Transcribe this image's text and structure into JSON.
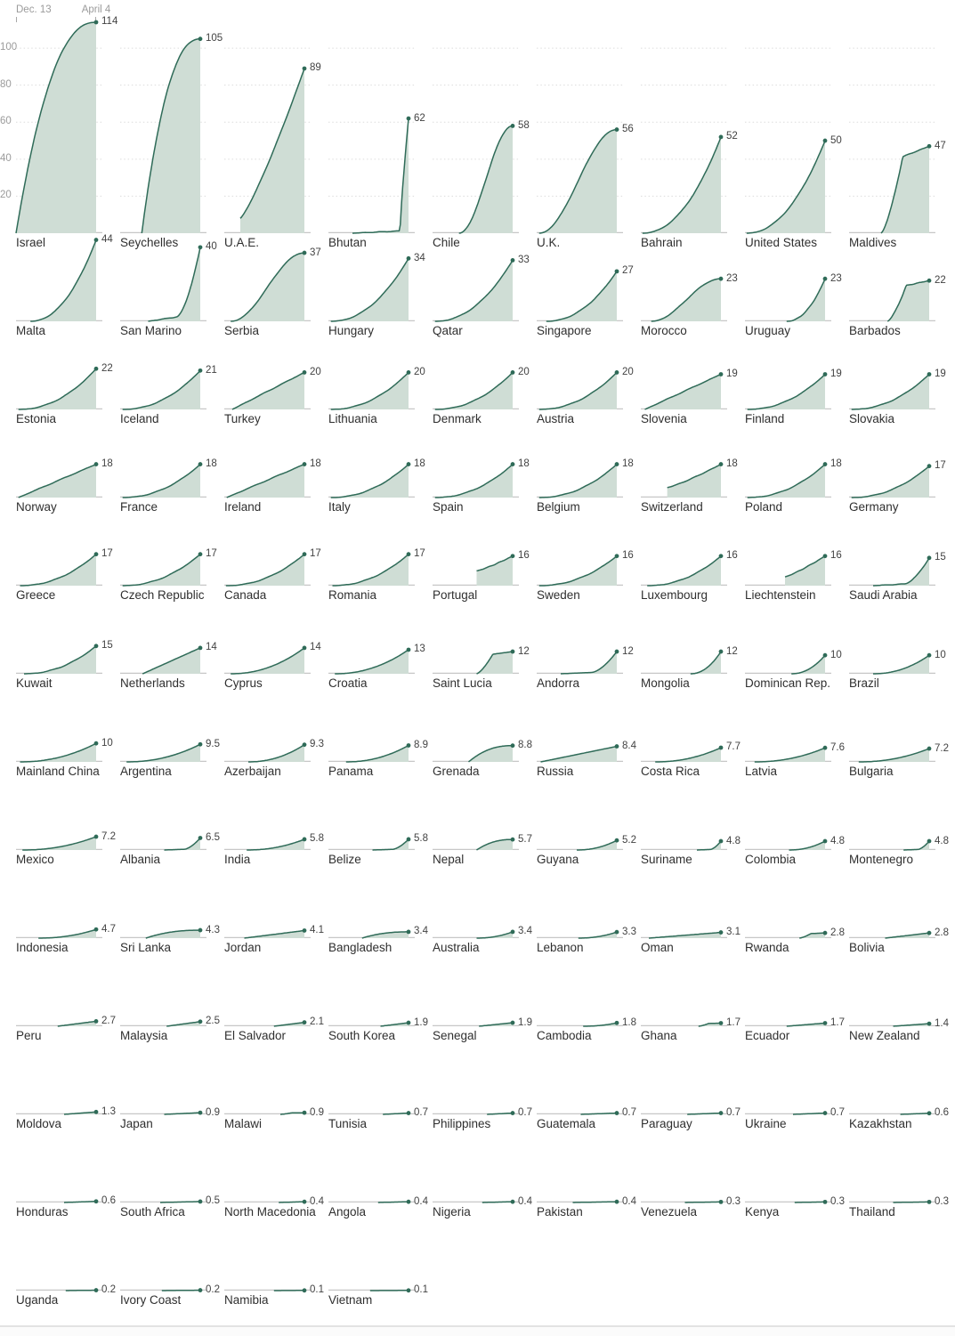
{
  "axis": {
    "x_start_label": "Dec. 13",
    "x_end_label": "April 4",
    "y_ticks": [
      20,
      40,
      60,
      80,
      100
    ]
  },
  "colors": {
    "line": "#2f6b58",
    "dot": "#2f6b58",
    "fill": "#cfddd5",
    "baseline": "#c7c7c7",
    "grid": "#dcdcdc",
    "value_text": "#424242",
    "country_text": "#2f2f2f",
    "axis_text": "#9b9b9b"
  },
  "chart_data": {
    "type": "area",
    "x_axis": {
      "start_label": "Dec. 13",
      "end_label": "April 4"
    },
    "y_ticks": [
      20,
      40,
      60,
      80,
      100
    ],
    "ylim": [
      0,
      118
    ],
    "grid_row1_only": true,
    "series": [
      {
        "name": "Israel",
        "label": "114",
        "value": 114,
        "shape": "d",
        "start": 0
      },
      {
        "name": "Seychelles",
        "label": "105",
        "value": 105,
        "shape": "d",
        "start": 0.27
      },
      {
        "name": "U.A.E.",
        "label": "89",
        "value": 89,
        "shape": "m",
        "start": 0.2,
        "base": 0.09
      },
      {
        "name": "Bhutan",
        "label": "62",
        "value": 62,
        "shape": "v",
        "start": 0.3
      },
      {
        "name": "Chile",
        "label": "58",
        "value": 58,
        "shape": "s",
        "start": 0.33
      },
      {
        "name": "U.K.",
        "label": "56",
        "value": 56,
        "shape": "s",
        "start": 0.03
      },
      {
        "name": "Bahrain",
        "label": "52",
        "value": 52,
        "shape": "c",
        "start": 0.02
      },
      {
        "name": "United States",
        "label": "50",
        "value": 50,
        "shape": "c",
        "start": 0.02
      },
      {
        "name": "Maldives",
        "label": "47",
        "value": 47,
        "shape": "j",
        "start": 0.4
      },
      {
        "name": "Malta",
        "label": "44",
        "value": 44,
        "shape": "c",
        "start": 0.18
      },
      {
        "name": "San Marino",
        "label": "40",
        "value": 40,
        "shape": "sp",
        "start": 0.35
      },
      {
        "name": "Serbia",
        "label": "37",
        "value": 37,
        "shape": "s",
        "start": 0.08
      },
      {
        "name": "Hungary",
        "label": "34",
        "value": 34,
        "shape": "c",
        "start": 0.03
      },
      {
        "name": "Qatar",
        "label": "33",
        "value": 33,
        "shape": "c",
        "start": 0.03
      },
      {
        "name": "Singapore",
        "label": "27",
        "value": 27,
        "shape": "c",
        "start": 0.12
      },
      {
        "name": "Morocco",
        "label": "23",
        "value": 23,
        "shape": "s",
        "start": 0.13
      },
      {
        "name": "Uruguay",
        "label": "23",
        "value": 23,
        "shape": "c",
        "start": 0.52
      },
      {
        "name": "Barbados",
        "label": "22",
        "value": 22,
        "shape": "j",
        "start": 0.48
      },
      {
        "name": "Estonia",
        "label": "22",
        "value": 22,
        "shape": "c",
        "start": 0.03
      },
      {
        "name": "Iceland",
        "label": "21",
        "value": 21,
        "shape": "c",
        "start": 0.03
      },
      {
        "name": "Turkey",
        "label": "20",
        "value": 20,
        "shape": "l",
        "start": 0.1
      },
      {
        "name": "Lithuania",
        "label": "20",
        "value": 20,
        "shape": "c",
        "start": 0.03
      },
      {
        "name": "Denmark",
        "label": "20",
        "value": 20,
        "shape": "c",
        "start": 0.03
      },
      {
        "name": "Austria",
        "label": "20",
        "value": 20,
        "shape": "c",
        "start": 0.03
      },
      {
        "name": "Slovenia",
        "label": "19",
        "value": 19,
        "shape": "l",
        "start": 0.05
      },
      {
        "name": "Finland",
        "label": "19",
        "value": 19,
        "shape": "c",
        "start": 0.03
      },
      {
        "name": "Slovakia",
        "label": "19",
        "value": 19,
        "shape": "c",
        "start": 0.03
      },
      {
        "name": "Norway",
        "label": "18",
        "value": 18,
        "shape": "l",
        "start": 0.03
      },
      {
        "name": "France",
        "label": "18",
        "value": 18,
        "shape": "c",
        "start": 0.03
      },
      {
        "name": "Ireland",
        "label": "18",
        "value": 18,
        "shape": "l",
        "start": 0.03
      },
      {
        "name": "Italy",
        "label": "18",
        "value": 18,
        "shape": "c",
        "start": 0.03
      },
      {
        "name": "Spain",
        "label": "18",
        "value": 18,
        "shape": "c",
        "start": 0.03
      },
      {
        "name": "Belgium",
        "label": "18",
        "value": 18,
        "shape": "c",
        "start": 0.03
      },
      {
        "name": "Switzerland",
        "label": "18",
        "value": 18,
        "shape": "m",
        "start": 0.33,
        "base": 0.3
      },
      {
        "name": "Poland",
        "label": "18",
        "value": 18,
        "shape": "c",
        "start": 0.03
      },
      {
        "name": "Germany",
        "label": "17",
        "value": 17,
        "shape": "c",
        "start": 0.03
      },
      {
        "name": "Greece",
        "label": "17",
        "value": 17,
        "shape": "c",
        "start": 0.05
      },
      {
        "name": "Czech Republic",
        "label": "17",
        "value": 17,
        "shape": "c",
        "start": 0.03
      },
      {
        "name": "Canada",
        "label": "17",
        "value": 17,
        "shape": "c",
        "start": 0.02
      },
      {
        "name": "Romania",
        "label": "17",
        "value": 17,
        "shape": "c",
        "start": 0.05
      },
      {
        "name": "Portugal",
        "label": "16",
        "value": 16,
        "shape": "m",
        "start": 0.55,
        "base": 0.5
      },
      {
        "name": "Sweden",
        "label": "16",
        "value": 16,
        "shape": "c",
        "start": 0.03
      },
      {
        "name": "Luxembourg",
        "label": "16",
        "value": 16,
        "shape": "c",
        "start": 0.08
      },
      {
        "name": "Liechtenstein",
        "label": "16",
        "value": 16,
        "shape": "m",
        "start": 0.5,
        "base": 0.3
      },
      {
        "name": "Saudi Arabia",
        "label": "15",
        "value": 15,
        "shape": "sp",
        "start": 0.3
      },
      {
        "name": "Kuwait",
        "label": "15",
        "value": 15,
        "shape": "c",
        "start": 0.1
      },
      {
        "name": "Netherlands",
        "label": "14",
        "value": 14,
        "shape": "l",
        "start": 0.28
      },
      {
        "name": "Cyprus",
        "label": "14",
        "value": 14,
        "shape": "c",
        "start": 0.08
      },
      {
        "name": "Croatia",
        "label": "13",
        "value": 13,
        "shape": "c",
        "start": 0.08
      },
      {
        "name": "Saint Lucia",
        "label": "12",
        "value": 12,
        "shape": "j",
        "start": 0.55
      },
      {
        "name": "Andorra",
        "label": "12",
        "value": 12,
        "shape": "sp",
        "start": 0.3
      },
      {
        "name": "Mongolia",
        "label": "12",
        "value": 12,
        "shape": "c",
        "start": 0.62
      },
      {
        "name": "Dominican Rep.",
        "label": "10",
        "value": 10,
        "shape": "c",
        "start": 0.58
      },
      {
        "name": "Brazil",
        "label": "10",
        "value": 10,
        "shape": "c",
        "start": 0.3
      },
      {
        "name": "Mainland China",
        "label": "10",
        "value": 10,
        "shape": "c",
        "start": 0.05
      },
      {
        "name": "Argentina",
        "label": "9.5",
        "value": 9.5,
        "shape": "c",
        "start": 0.08
      },
      {
        "name": "Azerbaijan",
        "label": "9.3",
        "value": 9.3,
        "shape": "c",
        "start": 0.3
      },
      {
        "name": "Panama",
        "label": "8.9",
        "value": 8.9,
        "shape": "c",
        "start": 0.22
      },
      {
        "name": "Grenada",
        "label": "8.8",
        "value": 8.8,
        "shape": "d",
        "start": 0.45
      },
      {
        "name": "Russia",
        "label": "8.4",
        "value": 8.4,
        "shape": "l",
        "start": 0.05
      },
      {
        "name": "Costa Rica",
        "label": "7.7",
        "value": 7.7,
        "shape": "c",
        "start": 0.18
      },
      {
        "name": "Latvia",
        "label": "7.6",
        "value": 7.6,
        "shape": "c",
        "start": 0.12
      },
      {
        "name": "Bulgaria",
        "label": "7.2",
        "value": 7.2,
        "shape": "c",
        "start": 0.12
      },
      {
        "name": "Mexico",
        "label": "7.2",
        "value": 7.2,
        "shape": "c",
        "start": 0.08
      },
      {
        "name": "Albania",
        "label": "6.5",
        "value": 6.5,
        "shape": "sp",
        "start": 0.55
      },
      {
        "name": "India",
        "label": "5.8",
        "value": 5.8,
        "shape": "c",
        "start": 0.28
      },
      {
        "name": "Belize",
        "label": "5.8",
        "value": 5.8,
        "shape": "sp",
        "start": 0.55
      },
      {
        "name": "Nepal",
        "label": "5.7",
        "value": 5.7,
        "shape": "d",
        "start": 0.55
      },
      {
        "name": "Guyana",
        "label": "5.2",
        "value": 5.2,
        "shape": "c",
        "start": 0.5
      },
      {
        "name": "Suriname",
        "label": "4.8",
        "value": 4.8,
        "shape": "sp",
        "start": 0.7
      },
      {
        "name": "Colombia",
        "label": "4.8",
        "value": 4.8,
        "shape": "c",
        "start": 0.55
      },
      {
        "name": "Montenegro",
        "label": "4.8",
        "value": 4.8,
        "shape": "sp",
        "start": 0.68
      },
      {
        "name": "Indonesia",
        "label": "4.7",
        "value": 4.7,
        "shape": "c",
        "start": 0.28
      },
      {
        "name": "Sri Lanka",
        "label": "4.3",
        "value": 4.3,
        "shape": "d",
        "start": 0.32
      },
      {
        "name": "Jordan",
        "label": "4.1",
        "value": 4.1,
        "shape": "l",
        "start": 0.25
      },
      {
        "name": "Bangladesh",
        "label": "3.4",
        "value": 3.4,
        "shape": "d",
        "start": 0.42
      },
      {
        "name": "Australia",
        "label": "3.4",
        "value": 3.4,
        "shape": "c",
        "start": 0.55
      },
      {
        "name": "Lebanon",
        "label": "3.3",
        "value": 3.3,
        "shape": "c",
        "start": 0.52
      },
      {
        "name": "Oman",
        "label": "3.1",
        "value": 3.1,
        "shape": "l",
        "start": 0.1
      },
      {
        "name": "Rwanda",
        "label": "2.8",
        "value": 2.8,
        "shape": "j",
        "start": 0.68
      },
      {
        "name": "Bolivia",
        "label": "2.8",
        "value": 2.8,
        "shape": "l",
        "start": 0.45
      },
      {
        "name": "Peru",
        "label": "2.7",
        "value": 2.7,
        "shape": "l",
        "start": 0.52
      },
      {
        "name": "Malaysia",
        "label": "2.5",
        "value": 2.5,
        "shape": "l",
        "start": 0.58
      },
      {
        "name": "El Salvador",
        "label": "2.1",
        "value": 2.1,
        "shape": "l",
        "start": 0.62
      },
      {
        "name": "South Korea",
        "label": "1.9",
        "value": 1.9,
        "shape": "l",
        "start": 0.65
      },
      {
        "name": "Senegal",
        "label": "1.9",
        "value": 1.9,
        "shape": "l",
        "start": 0.58
      },
      {
        "name": "Cambodia",
        "label": "1.8",
        "value": 1.8,
        "shape": "c",
        "start": 0.58
      },
      {
        "name": "Ghana",
        "label": "1.7",
        "value": 1.7,
        "shape": "j",
        "start": 0.72
      },
      {
        "name": "Ecuador",
        "label": "1.7",
        "value": 1.7,
        "shape": "l",
        "start": 0.52
      },
      {
        "name": "New Zealand",
        "label": "1.4",
        "value": 1.4,
        "shape": "l",
        "start": 0.55
      },
      {
        "name": "Moldova",
        "label": "1.3",
        "value": 1.3,
        "shape": "l",
        "start": 0.6
      },
      {
        "name": "Japan",
        "label": "0.9",
        "value": 0.9,
        "shape": "l",
        "start": 0.55
      },
      {
        "name": "Malawi",
        "label": "0.9",
        "value": 0.9,
        "shape": "j",
        "start": 0.7
      },
      {
        "name": "Tunisia",
        "label": "0.7",
        "value": 0.7,
        "shape": "l",
        "start": 0.68
      },
      {
        "name": "Philippines",
        "label": "0.7",
        "value": 0.7,
        "shape": "l",
        "start": 0.68
      },
      {
        "name": "Guatemala",
        "label": "0.7",
        "value": 0.7,
        "shape": "l",
        "start": 0.55
      },
      {
        "name": "Paraguay",
        "label": "0.7",
        "value": 0.7,
        "shape": "l",
        "start": 0.58
      },
      {
        "name": "Ukraine",
        "label": "0.7",
        "value": 0.7,
        "shape": "l",
        "start": 0.6
      },
      {
        "name": "Kazakhstan",
        "label": "0.6",
        "value": 0.6,
        "shape": "l",
        "start": 0.64
      },
      {
        "name": "Honduras",
        "label": "0.6",
        "value": 0.6,
        "shape": "l",
        "start": 0.6
      },
      {
        "name": "South Africa",
        "label": "0.5",
        "value": 0.5,
        "shape": "l",
        "start": 0.5
      },
      {
        "name": "North Macedonia",
        "label": "0.4",
        "value": 0.4,
        "shape": "l",
        "start": 0.68
      },
      {
        "name": "Angola",
        "label": "0.4",
        "value": 0.4,
        "shape": "l",
        "start": 0.62
      },
      {
        "name": "Nigeria",
        "label": "0.4",
        "value": 0.4,
        "shape": "l",
        "start": 0.62
      },
      {
        "name": "Pakistan",
        "label": "0.4",
        "value": 0.4,
        "shape": "l",
        "start": 0.45
      },
      {
        "name": "Venezuela",
        "label": "0.3",
        "value": 0.3,
        "shape": "l",
        "start": 0.55
      },
      {
        "name": "Kenya",
        "label": "0.3",
        "value": 0.3,
        "shape": "l",
        "start": 0.62
      },
      {
        "name": "Thailand",
        "label": "0.3",
        "value": 0.3,
        "shape": "l",
        "start": 0.55
      },
      {
        "name": "Uganda",
        "label": "0.2",
        "value": 0.2,
        "shape": "l",
        "start": 0.62
      },
      {
        "name": "Ivory Coast",
        "label": "0.2",
        "value": 0.2,
        "shape": "l",
        "start": 0.52
      },
      {
        "name": "Namibia",
        "label": "0.1",
        "value": 0.1,
        "shape": "l",
        "start": 0.62
      },
      {
        "name": "Vietnam",
        "label": "0.1",
        "value": 0.1,
        "shape": "l",
        "start": 0.52
      }
    ]
  }
}
